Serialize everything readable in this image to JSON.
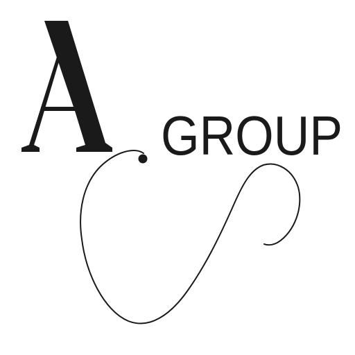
{
  "logo": {
    "initial": "A",
    "wordmark": "GROUP"
  },
  "colors": {
    "background": "#ffffff",
    "ink": "#1a1a1a"
  },
  "icons": {
    "flourish": "swash-flourish-icon"
  }
}
